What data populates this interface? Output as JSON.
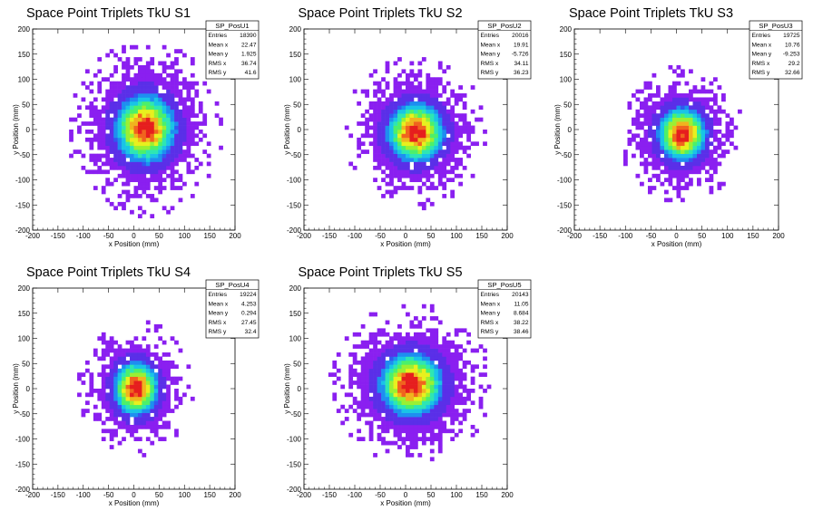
{
  "colors": {
    "background": "#ffffff",
    "palette": [
      "#8a1ff0",
      "#5a2fe8",
      "#3158f0",
      "#1e8ef0",
      "#19c4e6",
      "#2ee6b3",
      "#4cf06a",
      "#9af033",
      "#e8f01e",
      "#f0b41e",
      "#f0641e",
      "#e61e1e"
    ]
  },
  "chart_data": [
    {
      "type": "heatmap",
      "title": "Space Point Triplets TkU S1",
      "xlabel": "x Position (mm)",
      "ylabel": "y Position (mm)",
      "xlim": [
        -200,
        200
      ],
      "ylim": [
        -200,
        200
      ],
      "xticks": [
        "-200",
        "-150",
        "-100",
        "-50",
        "0",
        "50",
        "100",
        "150",
        "200"
      ],
      "yticks": [
        "200",
        "150",
        "100",
        "50",
        "0",
        "-50",
        "-100",
        "-150",
        "-200"
      ],
      "stats": {
        "name": "SP_PosU1",
        "rows": [
          {
            "label": "Entries",
            "value": "18390"
          },
          {
            "label": "Mean x",
            "value": "22.47"
          },
          {
            "label": "Mean y",
            "value": "1.925"
          },
          {
            "label": "RMS x",
            "value": "36.74"
          },
          {
            "label": "RMS y",
            "value": "41.6"
          }
        ]
      },
      "distribution": {
        "entries": 18390,
        "mean_x": 22.47,
        "mean_y": 1.925,
        "rms_x": 36.74,
        "rms_y": 41.6
      }
    },
    {
      "type": "heatmap",
      "title": "Space Point Triplets TkU S2",
      "xlabel": "x Position (mm)",
      "ylabel": "y Position (mm)",
      "xlim": [
        -200,
        200
      ],
      "ylim": [
        -200,
        200
      ],
      "xticks": [
        "-200",
        "-150",
        "-100",
        "-50",
        "0",
        "50",
        "100",
        "150",
        "200"
      ],
      "yticks": [
        "200",
        "150",
        "100",
        "50",
        "0",
        "-50",
        "-100",
        "-150",
        "-200"
      ],
      "stats": {
        "name": "SP_PosU2",
        "rows": [
          {
            "label": "Entries",
            "value": "20016"
          },
          {
            "label": "Mean x",
            "value": "19.91"
          },
          {
            "label": "Mean y",
            "value": "-5.726"
          },
          {
            "label": "RMS x",
            "value": "34.11"
          },
          {
            "label": "RMS y",
            "value": "36.23"
          }
        ]
      },
      "distribution": {
        "entries": 20016,
        "mean_x": 19.91,
        "mean_y": -5.726,
        "rms_x": 34.11,
        "rms_y": 36.23
      }
    },
    {
      "type": "heatmap",
      "title": "Space Point Triplets TkU S3",
      "xlabel": "x Position (mm)",
      "ylabel": "y Position (mm)",
      "xlim": [
        -200,
        200
      ],
      "ylim": [
        -200,
        200
      ],
      "xticks": [
        "-200",
        "-150",
        "-100",
        "-50",
        "0",
        "50",
        "100",
        "150",
        "200"
      ],
      "yticks": [
        "200",
        "150",
        "100",
        "50",
        "0",
        "-50",
        "-100",
        "-150",
        "-200"
      ],
      "stats": {
        "name": "SP_PosU3",
        "rows": [
          {
            "label": "Entries",
            "value": "19725"
          },
          {
            "label": "Mean x",
            "value": "10.76"
          },
          {
            "label": "Mean y",
            "value": "-9.253"
          },
          {
            "label": "RMS x",
            "value": "29.2"
          },
          {
            "label": "RMS y",
            "value": "32.66"
          }
        ]
      },
      "distribution": {
        "entries": 19725,
        "mean_x": 10.76,
        "mean_y": -9.253,
        "rms_x": 29.2,
        "rms_y": 32.66
      }
    },
    {
      "type": "heatmap",
      "title": "Space Point Triplets TkU S4",
      "xlabel": "x Position (mm)",
      "ylabel": "y Position (mm)",
      "xlim": [
        -200,
        200
      ],
      "ylim": [
        -200,
        200
      ],
      "xticks": [
        "-200",
        "-150",
        "-100",
        "-50",
        "0",
        "50",
        "100",
        "150",
        "200"
      ],
      "yticks": [
        "200",
        "150",
        "100",
        "50",
        "0",
        "-50",
        "-100",
        "-150",
        "-200"
      ],
      "stats": {
        "name": "SP_PosU4",
        "rows": [
          {
            "label": "Entries",
            "value": "19224"
          },
          {
            "label": "Mean x",
            "value": "4.253"
          },
          {
            "label": "Mean y",
            "value": "0.294"
          },
          {
            "label": "RMS x",
            "value": "27.45"
          },
          {
            "label": "RMS y",
            "value": "32.4"
          }
        ]
      },
      "distribution": {
        "entries": 19224,
        "mean_x": 4.253,
        "mean_y": 0.294,
        "rms_x": 27.45,
        "rms_y": 32.4
      }
    },
    {
      "type": "heatmap",
      "title": "Space Point Triplets TkU S5",
      "xlabel": "x Position (mm)",
      "ylabel": "y Position (mm)",
      "xlim": [
        -200,
        200
      ],
      "ylim": [
        -200,
        200
      ],
      "xticks": [
        "-200",
        "-150",
        "-100",
        "-50",
        "0",
        "50",
        "100",
        "150",
        "200"
      ],
      "yticks": [
        "200",
        "150",
        "100",
        "50",
        "0",
        "-50",
        "-100",
        "-150",
        "-200"
      ],
      "stats": {
        "name": "SP_PosU5",
        "rows": [
          {
            "label": "Entries",
            "value": "20143"
          },
          {
            "label": "Mean x",
            "value": "11.05"
          },
          {
            "label": "Mean y",
            "value": "8.684"
          },
          {
            "label": "RMS x",
            "value": "38.22"
          },
          {
            "label": "RMS y",
            "value": "38.46"
          }
        ]
      },
      "distribution": {
        "entries": 20143,
        "mean_x": 11.05,
        "mean_y": 8.684,
        "rms_x": 38.22,
        "rms_y": 38.46
      }
    }
  ]
}
